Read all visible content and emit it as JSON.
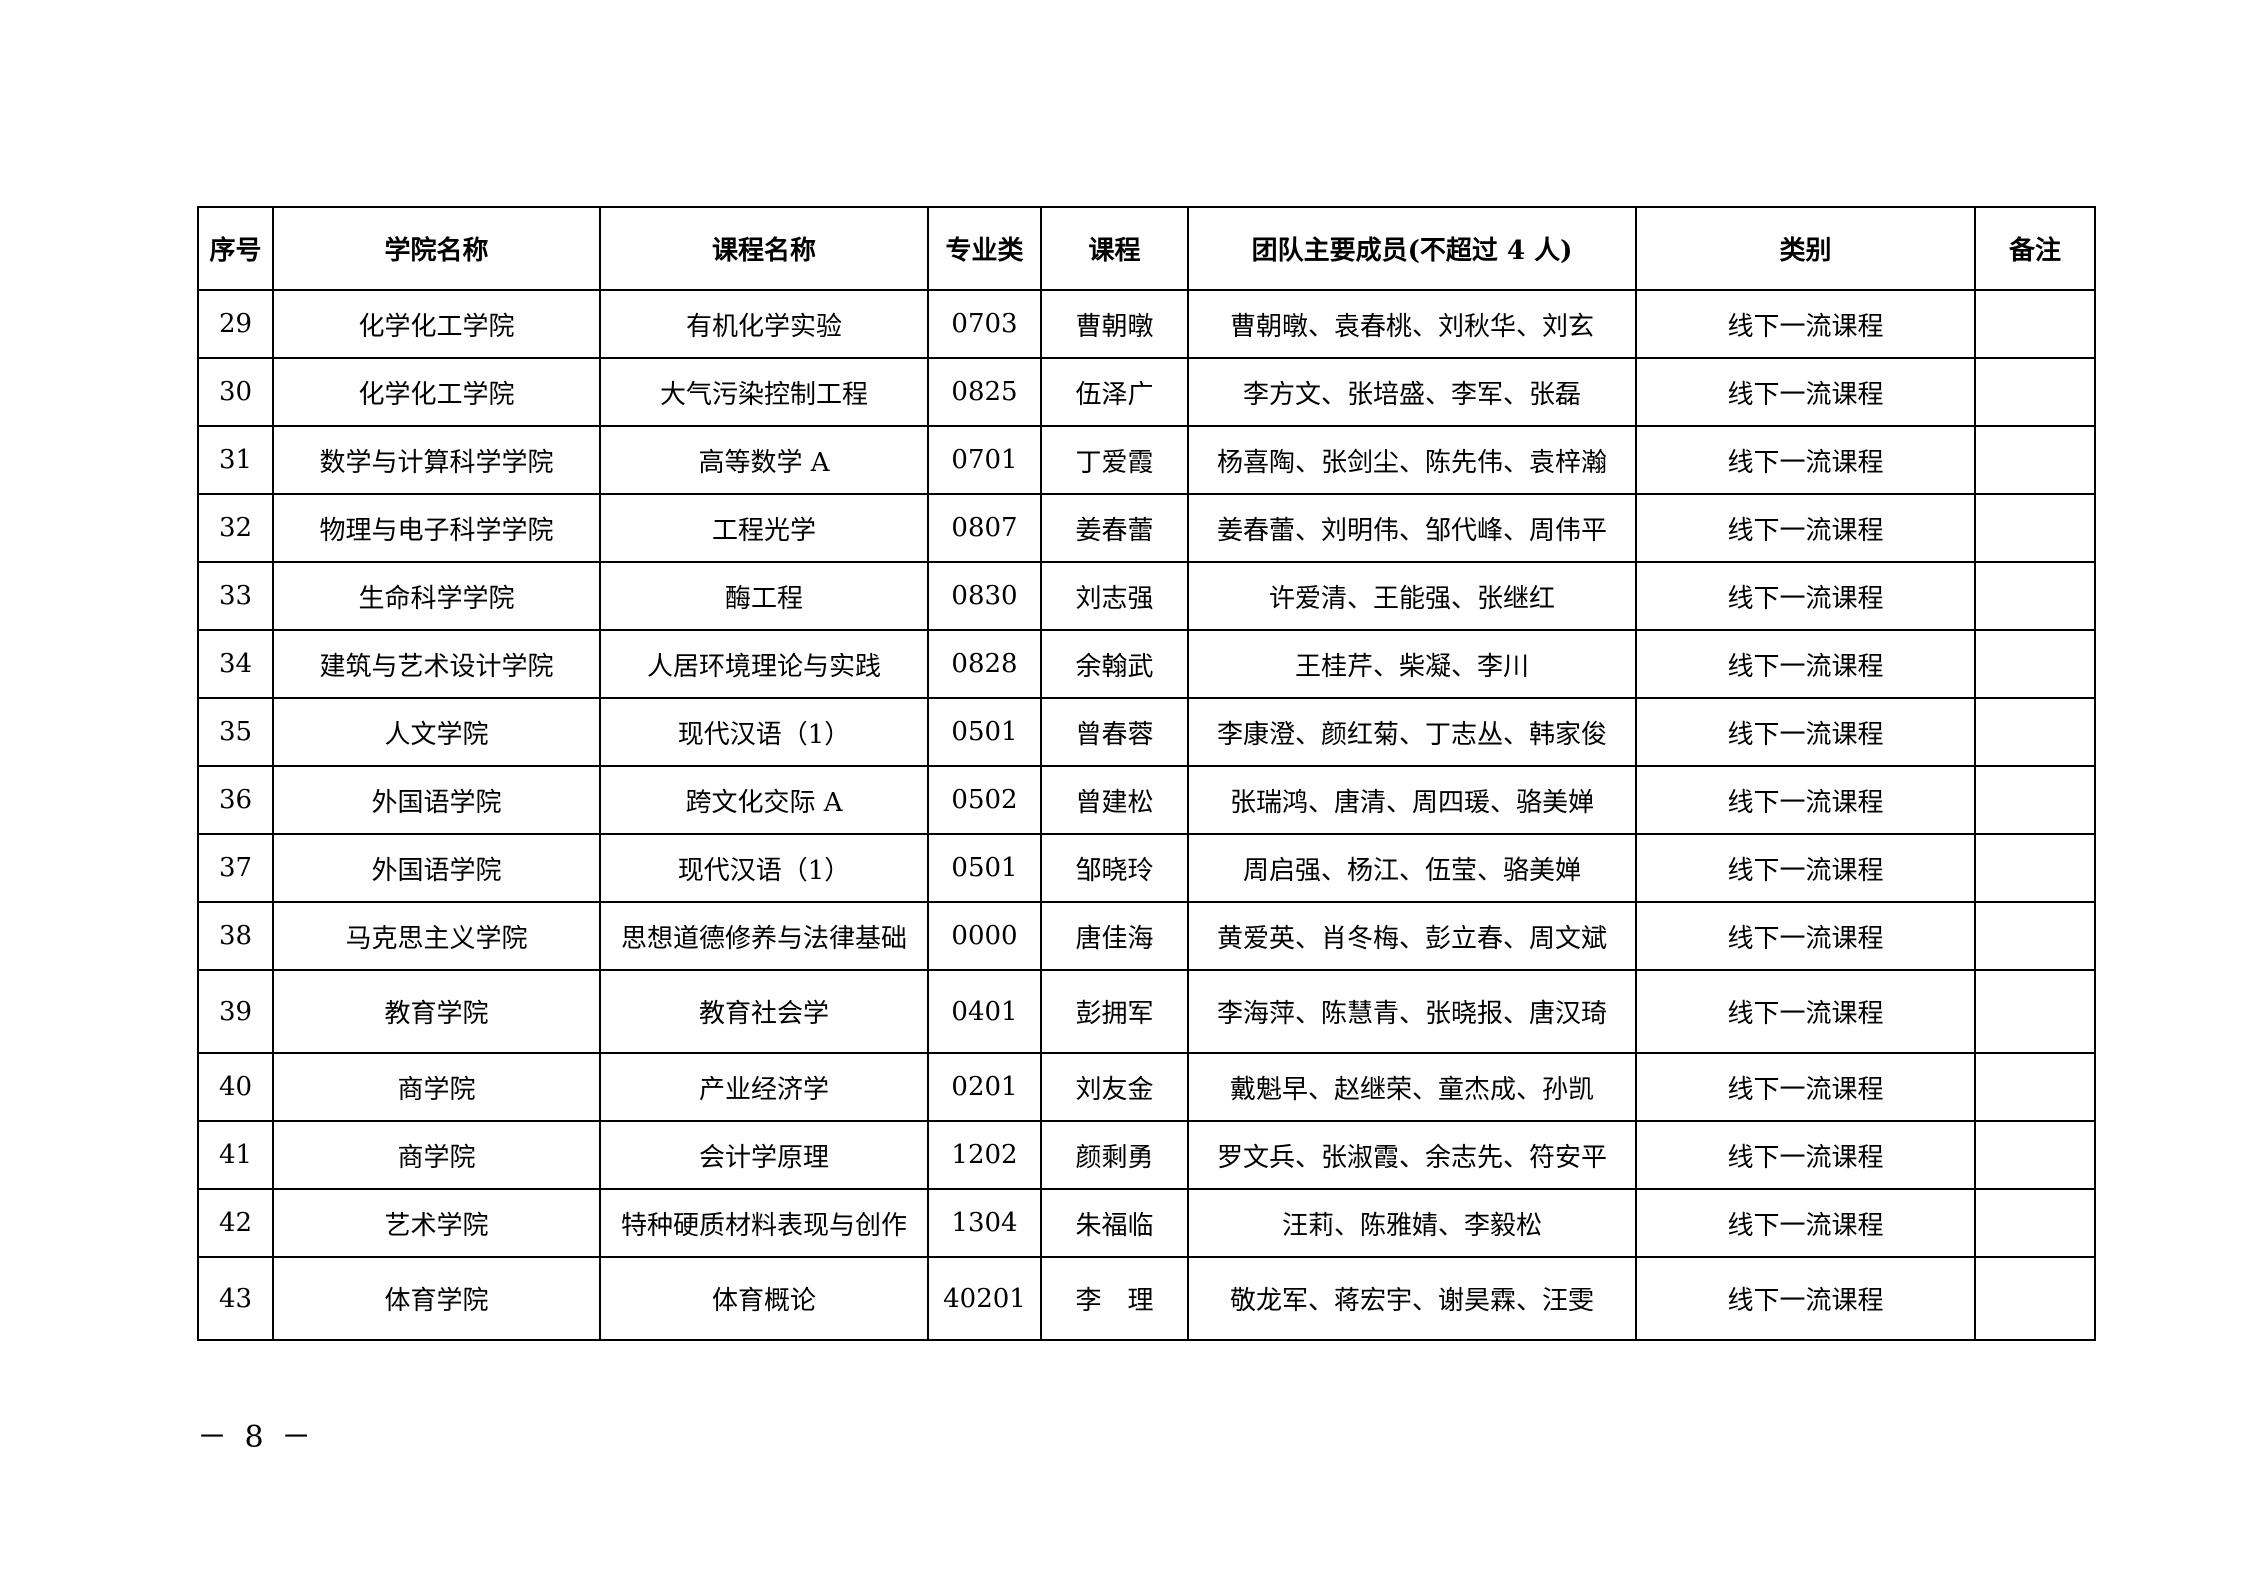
{
  "table": {
    "headers": [
      "序号",
      "学院名称",
      "课程名称",
      "专业类",
      "课程",
      "团队主要成员(不超过 4 人)",
      "类别",
      "备注"
    ],
    "rows": [
      [
        "29",
        "化学化工学院",
        "有机化学实验",
        "0703",
        "曹朝暾",
        "曹朝暾、袁春桃、刘秋华、刘玄",
        "线下一流课程",
        ""
      ],
      [
        "30",
        "化学化工学院",
        "大气污染控制工程",
        "0825",
        "伍泽广",
        "李方文、张培盛、李军、张磊",
        "线下一流课程",
        ""
      ],
      [
        "31",
        "数学与计算科学学院",
        "高等数学 A",
        "0701",
        "丁爱霞",
        "杨喜陶、张剑尘、陈先伟、袁梓瀚",
        "线下一流课程",
        ""
      ],
      [
        "32",
        "物理与电子科学学院",
        "工程光学",
        "0807",
        "姜春蕾",
        "姜春蕾、刘明伟、邹代峰、周伟平",
        "线下一流课程",
        ""
      ],
      [
        "33",
        "生命科学学院",
        "酶工程",
        "0830",
        "刘志强",
        "许爱清、王能强、张继红",
        "线下一流课程",
        ""
      ],
      [
        "34",
        "建筑与艺术设计学院",
        "人居环境理论与实践",
        "0828",
        "余翰武",
        "王桂芹、柴凝、李川",
        "线下一流课程",
        ""
      ],
      [
        "35",
        "人文学院",
        "现代汉语（1）",
        "0501",
        "曾春蓉",
        "李康澄、颜红菊、丁志丛、韩家俊",
        "线下一流课程",
        ""
      ],
      [
        "36",
        "外国语学院",
        "跨文化交际 A",
        "0502",
        "曾建松",
        "张瑞鸿、唐清、周四瑗、骆美婵",
        "线下一流课程",
        ""
      ],
      [
        "37",
        "外国语学院",
        "现代汉语（1）",
        "0501",
        "邹晓玲",
        "周启强、杨江、伍莹、骆美婵",
        "线下一流课程",
        ""
      ],
      [
        "38",
        "马克思主义学院",
        "思想道德修养与法律基础",
        "0000",
        "唐佳海",
        "黄爱英、肖冬梅、彭立春、周文斌",
        "线下一流课程",
        ""
      ],
      [
        "39",
        "教育学院",
        "教育社会学",
        "0401",
        "彭拥军",
        "李海萍、陈慧青、张晓报、唐汉琦",
        "线下一流课程",
        ""
      ],
      [
        "40",
        "商学院",
        "产业经济学",
        "0201",
        "刘友金",
        "戴魁早、赵继荣、童杰成、孙凯",
        "线下一流课程",
        ""
      ],
      [
        "41",
        "商学院",
        "会计学原理",
        "1202",
        "颜剩勇",
        "罗文兵、张淑霞、余志先、符安平",
        "线下一流课程",
        ""
      ],
      [
        "42",
        "艺术学院",
        "特种硬质材料表现与创作",
        "1304",
        "朱福临",
        "汪莉、陈雅婧、李毅松",
        "线下一流课程",
        ""
      ],
      [
        "43",
        "体育学院",
        "体育概论",
        "40201",
        "李　理",
        "敬龙军、蒋宏宇、谢昊霖、汪雯",
        "线下一流课程",
        ""
      ]
    ]
  },
  "page_number": "－ 8 －"
}
